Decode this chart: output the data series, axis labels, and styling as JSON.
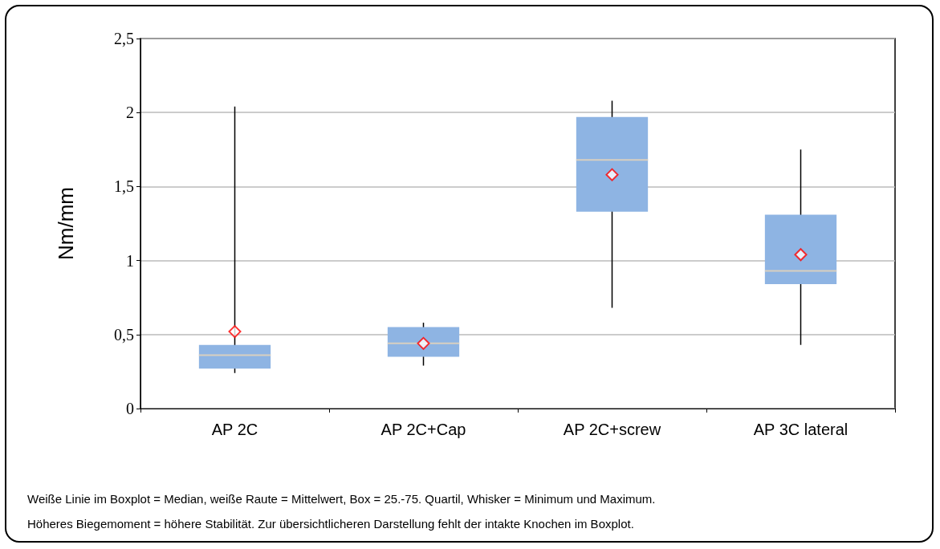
{
  "chart_data": {
    "type": "box",
    "ylabel": "Nm/mm",
    "categories": [
      "AP 2C",
      "AP 2C+Cap",
      "AP 2C+screw",
      "AP 3C lateral"
    ],
    "series": [
      {
        "color": "#8eb4e3",
        "boxes": [
          {
            "low": 0.24,
            "q1": 0.27,
            "median": 0.36,
            "q3": 0.43,
            "high": 2.04
          },
          {
            "low": 0.29,
            "q1": 0.35,
            "median": 0.44,
            "q3": 0.55,
            "high": 0.58
          },
          {
            "low": 0.68,
            "q1": 1.33,
            "median": 1.68,
            "q3": 1.97,
            "high": 2.08
          },
          {
            "low": 0.43,
            "q1": 0.84,
            "median": 0.93,
            "q3": 1.31,
            "high": 1.75
          }
        ]
      },
      {
        "type": "scatter",
        "color": "#ff0000",
        "marker": "diamond",
        "x": [
          "AP 2C",
          "AP 2C+Cap",
          "AP 2C+screw",
          "AP 3C lateral"
        ],
        "values": [
          0.52,
          0.44,
          1.58,
          1.04
        ]
      }
    ],
    "ylim": [
      0,
      2.5
    ],
    "yticks": [
      0,
      {
        "value": 0.5,
        "label": "0,5"
      },
      1,
      {
        "value": 1.5,
        "label": "1,5"
      },
      2,
      {
        "value": 2.5,
        "label": "2,5"
      }
    ],
    "grid": "y",
    "annotations": [
      "Weiße Linie im Boxplot = Median, weiße Raute = Mittelwert, Box = 25.-75. Quartil, Whisker = Minimum und Maximum.",
      "Höheres Biegemoment = höhere Stabilität. Zur übersichtlicheren Darstellung fehlt der intakte Knochen im Boxplot."
    ]
  }
}
